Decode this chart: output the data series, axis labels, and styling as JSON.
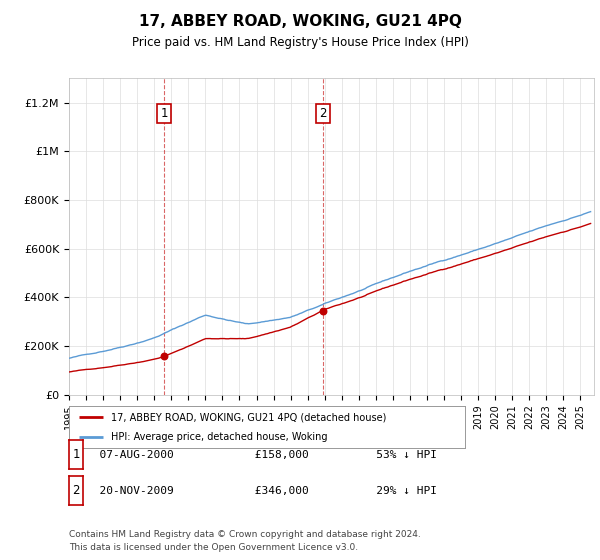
{
  "title": "17, ABBEY ROAD, WOKING, GU21 4PQ",
  "subtitle": "Price paid vs. HM Land Registry's House Price Index (HPI)",
  "ylabel_ticks": [
    "£0",
    "£200K",
    "£400K",
    "£600K",
    "£800K",
    "£1M",
    "£1.2M"
  ],
  "ytick_values": [
    0,
    200000,
    400000,
    600000,
    800000,
    1000000,
    1200000
  ],
  "ylim": [
    0,
    1300000
  ],
  "xlim_start": 1995.0,
  "xlim_end": 2025.8,
  "hpi_color": "#5b9bd5",
  "price_color": "#c00000",
  "vline_color": "#c00000",
  "transaction1_date": 2000.59,
  "transaction1_price": 158000,
  "transaction2_date": 2009.89,
  "transaction2_price": 346000,
  "legend_label1": "17, ABBEY ROAD, WOKING, GU21 4PQ (detached house)",
  "legend_label2": "HPI: Average price, detached house, Woking",
  "footnote1": "Contains HM Land Registry data © Crown copyright and database right 2024.",
  "footnote2": "This data is licensed under the Open Government Licence v3.0.",
  "table_rows": [
    {
      "num": "1",
      "date": "07-AUG-2000",
      "price": "£158,000",
      "hpi": "53% ↓ HPI"
    },
    {
      "num": "2",
      "date": "20-NOV-2009",
      "price": "£346,000",
      "hpi": "29% ↓ HPI"
    }
  ],
  "background_color": "#ffffff",
  "grid_color": "#dddddd"
}
